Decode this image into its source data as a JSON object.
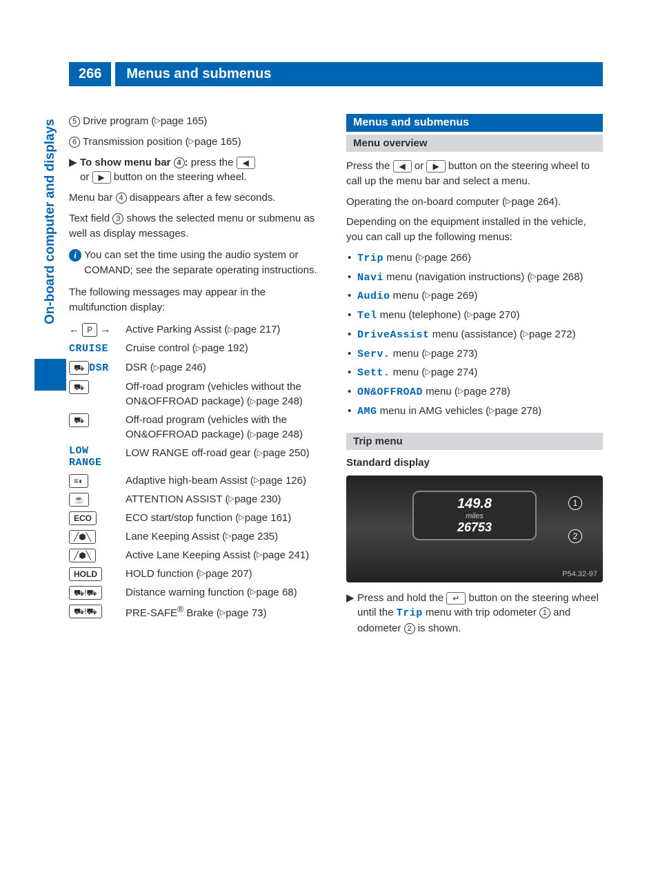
{
  "header": {
    "page_num": "266",
    "title": "Menus and submenus"
  },
  "side_tab": "On-board computer and displays",
  "left": {
    "numbered": [
      {
        "n": "5",
        "text": "Drive program (",
        "page": "page 165",
        "after": ")"
      },
      {
        "n": "6",
        "text": "Transmission position (",
        "page": "page 165",
        "after": ")"
      }
    ],
    "show_menu": {
      "lead": "To show menu bar ",
      "circ": "4",
      "colon": ": ",
      "press": "press the ",
      "or": "or ",
      "tail": " button on the steering wheel."
    },
    "p1a": "Menu bar ",
    "p1circ": "4",
    "p1b": " disappears after a few seconds.",
    "p2a": "Text field ",
    "p2circ": "3",
    "p2b": " shows the selected menu or submenu as well as display messages.",
    "info": "You can set the time using the audio system or COMAND; see the separate operating instructions.",
    "p3": "The following messages may appear in the multifunction display:",
    "rows": [
      {
        "icon_type": "parking",
        "desc": "Active Parking Assist (",
        "page": "page 217",
        "after": ")"
      },
      {
        "icon_type": "text",
        "icon_text": "CRUISE",
        "desc": "Cruise control (",
        "page": "page 192",
        "after": ")"
      },
      {
        "icon_type": "dsr",
        "icon_text": "DSR",
        "desc": "DSR (",
        "page": "page 246",
        "after": ")"
      },
      {
        "icon_type": "car",
        "desc": "Off-road program (vehicles without the ON&OFFROAD package) (",
        "page": "page 248",
        "after": ")"
      },
      {
        "icon_type": "car",
        "desc": "Off-road program (vehicles with the ON&OFFROAD package) (",
        "page": "page 248",
        "after": ")"
      },
      {
        "icon_type": "text2",
        "icon_text": "LOW RANGE",
        "desc": "LOW RANGE off-road gear (",
        "page": "page 250",
        "after": ")"
      },
      {
        "icon_type": "beam",
        "desc": "Adaptive high-beam Assist (",
        "page": "page 126",
        "after": ")"
      },
      {
        "icon_type": "coffee",
        "desc": "ATTENTION ASSIST (",
        "page": "page 230",
        "after": ")"
      },
      {
        "icon_type": "boxtext",
        "icon_text": "ECO",
        "desc": "ECO start/stop function (",
        "page": "page 161",
        "after": ")"
      },
      {
        "icon_type": "lane",
        "desc": "Lane Keeping Assist (",
        "page": "page 235",
        "after": ")"
      },
      {
        "icon_type": "lane",
        "desc": "Active Lane Keeping Assist (",
        "page": "page 241",
        "after": ")"
      },
      {
        "icon_type": "boxtext",
        "icon_text": "HOLD",
        "desc": "HOLD function (",
        "page": "page 207",
        "after": ")"
      },
      {
        "icon_type": "dist",
        "desc": "Distance warning function (",
        "page": "page 68",
        "after": ")"
      },
      {
        "icon_type": "dist",
        "desc_pre": "PRE-SAFE",
        "sup": "®",
        "desc": " Brake (",
        "page": "page 73",
        "after": ")"
      }
    ]
  },
  "right": {
    "h_blue": "Menus and submenus",
    "h_grey1": "Menu overview",
    "p1a": "Press the ",
    "p1b": " or ",
    "p1c": " button on the steering wheel to call up the menu bar and select a menu.",
    "p2a": "Operating the on-board computer (",
    "p2page": "page 264",
    "p2b": ").",
    "p3": "Depending on the equipment installed in the vehicle, you can call up the following menus:",
    "menus": [
      {
        "name": "Trip",
        "tail": " menu (",
        "page": "page 266",
        "after": ")"
      },
      {
        "name": "Navi",
        "tail": " menu (navigation instructions) (",
        "page": "page 268",
        "after": ")"
      },
      {
        "name": "Audio",
        "tail": " menu (",
        "page": "page 269",
        "after": ")"
      },
      {
        "name": "Tel",
        "tail": " menu (telephone) (",
        "page": "page 270",
        "after": ")"
      },
      {
        "name": "DriveAssist",
        "tail": " menu (assistance) (",
        "page": "page 272",
        "after": ")"
      },
      {
        "name": "Serv.",
        "tail": " menu (",
        "page": "page 273",
        "after": ")"
      },
      {
        "name": "Sett.",
        "tail": " menu (",
        "page": "page 274",
        "after": ")"
      },
      {
        "name": "ON&OFFROAD",
        "tail": " menu (",
        "page": "page 278",
        "after": ")"
      },
      {
        "name": "AMG",
        "tail": " menu in AMG vehicles (",
        "page": "page 278",
        "after": ")"
      }
    ],
    "h_grey2": "Trip menu",
    "sub": "Standard display",
    "fig": {
      "val1": "149.8",
      "unit": "miles",
      "val2": "26753",
      "label": "P54.32-97",
      "c1": "1",
      "c2": "2"
    },
    "step": {
      "a": "Press and hold the ",
      "b": " button on the steering wheel until the ",
      "trip": "Trip",
      "c": " menu with trip odometer ",
      "n1": "1",
      "d": " and odometer ",
      "n2": "2",
      "e": " is shown."
    }
  }
}
